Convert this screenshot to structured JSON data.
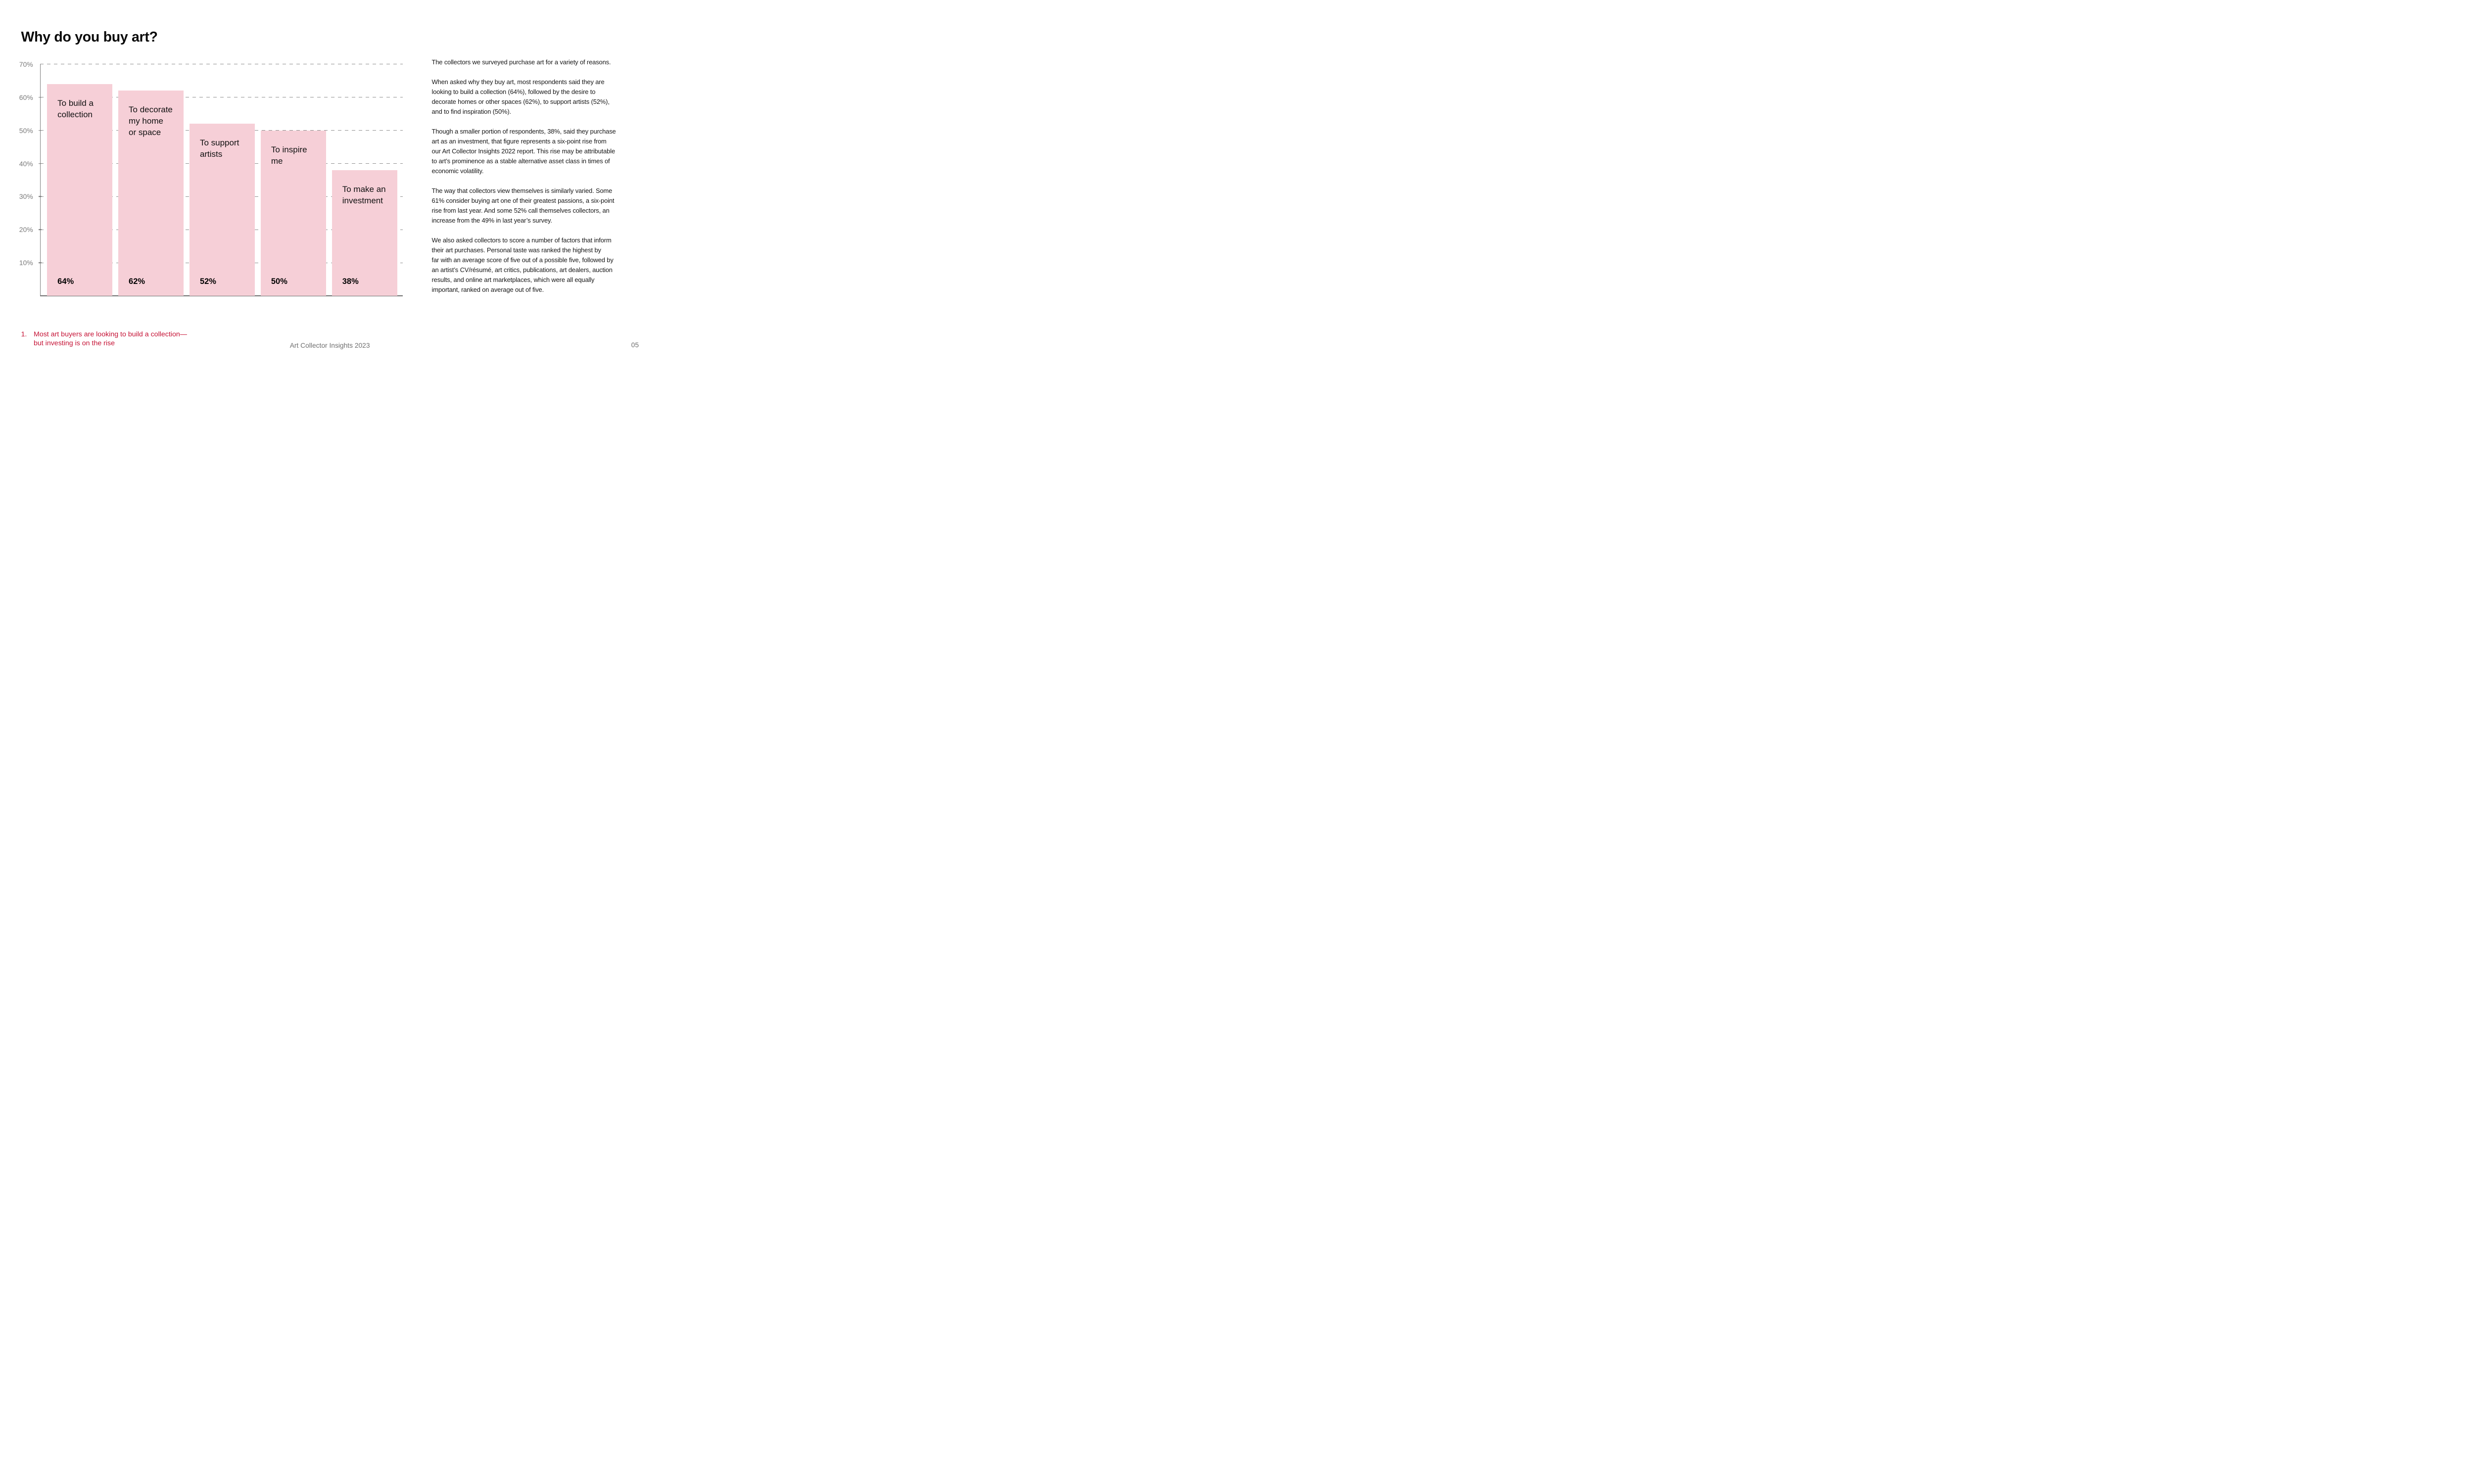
{
  "page": {
    "title": "Why do you buy art?",
    "accent_red": "#C51235",
    "footer": {
      "report_title": "Art Collector Insights 2023",
      "page_number": "05"
    },
    "footnote": {
      "number": "1.",
      "lines": [
        "Most art buyers are looking to build a collection—",
        "but investing is on the rise"
      ]
    }
  },
  "chart_data": {
    "type": "bar",
    "title": "Why do you buy art?",
    "categories": [
      "To build a collection",
      "To decorate my home or space",
      "To support artists",
      "To inspire me",
      "To make an investment"
    ],
    "values": [
      64,
      62,
      52,
      50,
      38
    ],
    "value_labels": [
      "64%",
      "62%",
      "52%",
      "50%",
      "38%"
    ],
    "bar_label_lines": [
      [
        "To build a",
        "collection"
      ],
      [
        "To decorate",
        "my home",
        "or space"
      ],
      [
        "To support",
        "artists"
      ],
      [
        "To inspire",
        "me"
      ],
      [
        "To make an",
        "investment"
      ]
    ],
    "y_ticks": [
      {
        "value": 70,
        "label": "70%"
      },
      {
        "value": 60,
        "label": "60%"
      },
      {
        "value": 50,
        "label": "50%"
      },
      {
        "value": 40,
        "label": "40%"
      },
      {
        "value": 30,
        "label": "30%"
      },
      {
        "value": 20,
        "label": "20%"
      },
      {
        "value": 10,
        "label": "10%"
      }
    ],
    "ylim": [
      0,
      70
    ],
    "xlabel": "",
    "ylabel": "",
    "grid": "dashed horizontal gridlines",
    "legend": "none",
    "bar_color": "#F6CFD7",
    "axis_color": "#7a7a7a",
    "tick_label_color": "#7b7b7b"
  },
  "article": {
    "paragraphs": [
      {
        "lines": [
          "The collectors we surveyed purchase art for a variety of reasons."
        ]
      },
      {
        "lines": [
          "When asked why they buy art, most respondents said they are",
          "looking to build a collection (64%), followed by the desire to",
          "decorate homes or other spaces (62%), to support artists (52%),",
          "and to find inspiration (50%)."
        ]
      },
      {
        "lines": [
          "Though a smaller portion of respondents, 38%, said they purchase",
          "art as an investment, that figure represents a six-point rise from",
          "our Art Collector Insights 2022 report. This rise may be attributable",
          "to art’s prominence as a stable alternative asset class in times of",
          "economic volatility."
        ]
      },
      {
        "lines": [
          "The way that collectors view themselves is similarly varied. Some",
          "61% consider buying art one of their greatest passions, a six-point",
          "rise from last year. And some 52% call themselves collectors, an",
          "increase from the 49% in last year’s survey."
        ]
      },
      {
        "lines": [
          "We also asked collectors to score a number of factors that inform",
          "their art purchases. Personal taste was ranked the highest by",
          "far with an average score of five out of a possible five, followed by",
          "an artist’s CV/résumé, art critics, publications, art dealers, auction",
          "results, and online art marketplaces, which were all equally",
          "important, ranked on average out of five."
        ]
      }
    ]
  }
}
